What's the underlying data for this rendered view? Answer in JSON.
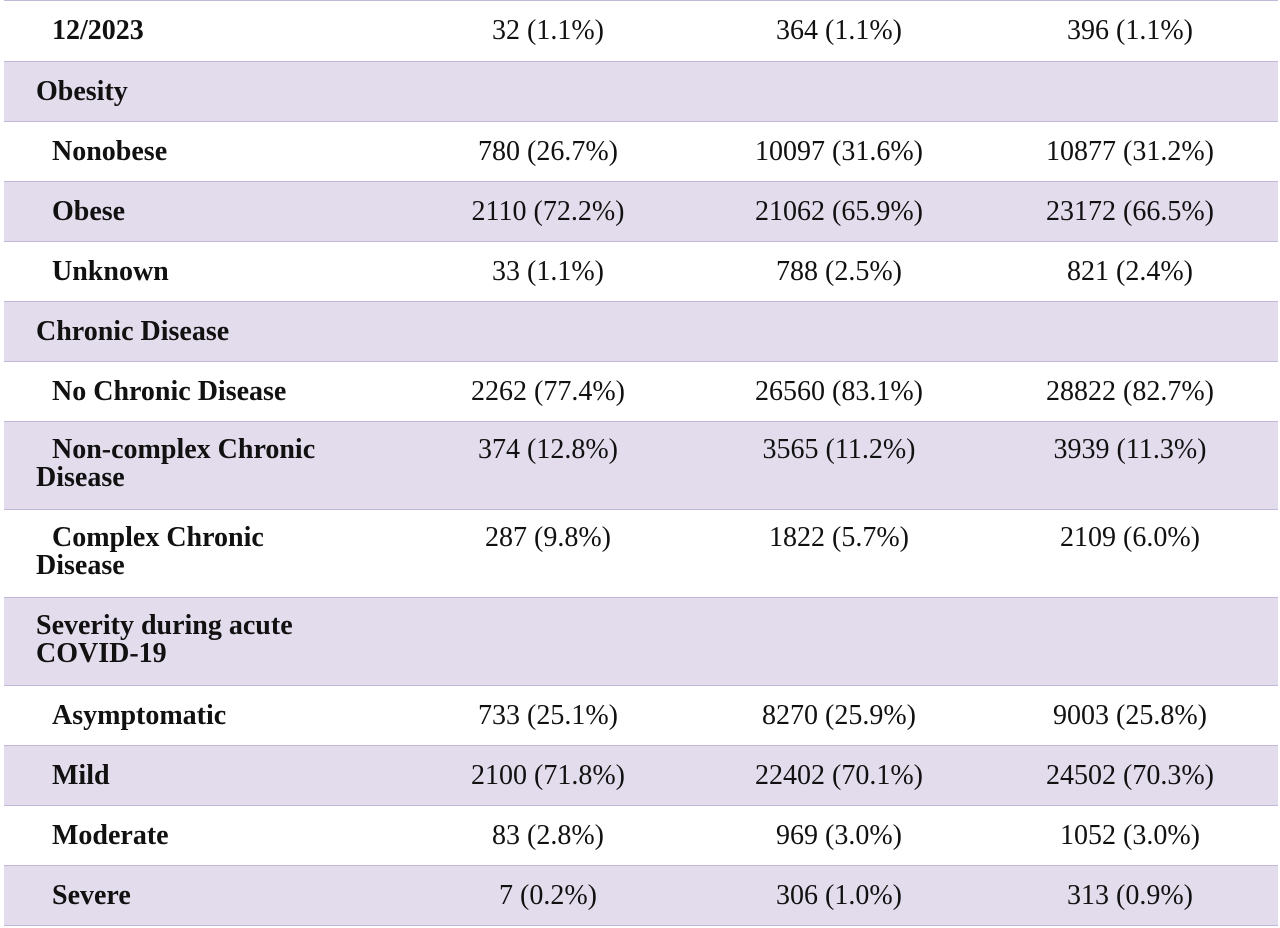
{
  "rows": [
    {
      "label": "12/2023",
      "values": [
        "32 (1.1%)",
        "364 (1.1%)",
        "396 (1.1%)"
      ]
    },
    {
      "label": "Obesity",
      "values": []
    },
    {
      "label": "Nonobese",
      "values": [
        "780 (26.7%)",
        "10097 (31.6%)",
        "10877 (31.2%)"
      ]
    },
    {
      "label": "Obese",
      "values": [
        "2110 (72.2%)",
        "21062 (65.9%)",
        "23172 (66.5%)"
      ]
    },
    {
      "label": "Unknown",
      "values": [
        "33 (1.1%)",
        "788 (2.5%)",
        "821 (2.4%)"
      ]
    },
    {
      "label": "Chronic Disease",
      "values": []
    },
    {
      "label": "No Chronic Disease",
      "values": [
        "2262 (77.4%)",
        "26560 (83.1%)",
        "28822 (82.7%)"
      ]
    },
    {
      "label": "Non-complex Chronic Disease",
      "values": [
        "374 (12.8%)",
        "3565 (11.2%)",
        "3939 (11.3%)"
      ]
    },
    {
      "label": "Complex Chronic Disease",
      "values": [
        "287 (9.8%)",
        "1822 (5.7%)",
        "2109 (6.0%)"
      ]
    },
    {
      "label": "Severity during acute COVID-19",
      "values": []
    },
    {
      "label": "Asymptomatic",
      "values": [
        "733 (25.1%)",
        "8270 (25.9%)",
        "9003 (25.8%)"
      ]
    },
    {
      "label": "Mild",
      "values": [
        "2100 (71.8%)",
        "22402 (70.1%)",
        "24502 (70.3%)"
      ]
    },
    {
      "label": "Moderate",
      "values": [
        "83 (2.8%)",
        "969 (3.0%)",
        "1052 (3.0%)"
      ]
    },
    {
      "label": "Severe",
      "values": [
        "7 (0.2%)",
        "306 (1.0%)",
        "313 (0.9%)"
      ]
    }
  ],
  "colors": {
    "shaded_row": "#e3dcec",
    "plain_row": "#ffffff",
    "rule": "#c2b8d9",
    "text": "#111111"
  }
}
